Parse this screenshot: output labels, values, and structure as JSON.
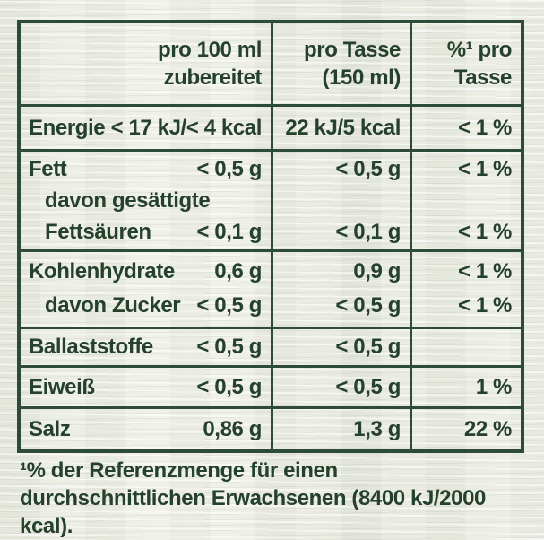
{
  "colors": {
    "ink": "#25402d",
    "border": "#2d4b38",
    "background": "#ecede5"
  },
  "table": {
    "header": {
      "per100": {
        "line1": "pro 100 ml",
        "line2": "zubereitet"
      },
      "perCup": {
        "line1": "pro Tasse",
        "line2": "(150 ml)"
      },
      "pct": {
        "line1": "%¹ pro",
        "line2": "Tasse"
      }
    },
    "rows": {
      "energie": {
        "label": "Energie",
        "per100": "< 17 kJ/< 4 kcal",
        "perCup": "22 kJ/5 kcal",
        "pct": "< 1 %"
      },
      "fett": {
        "label": "Fett",
        "per100": "< 0,5 g",
        "perCup": "< 0,5 g",
        "pct": "< 1 %",
        "sub_line1": "davon gesättigte",
        "sub_line2": "Fettsäuren",
        "sub_per100": "< 0,1 g",
        "sub_perCup": "< 0,1 g",
        "sub_pct": "< 1 %"
      },
      "kohlenhydrate": {
        "label": "Kohlenhydrate",
        "per100": "0,6 g",
        "perCup": "0,9 g",
        "pct": "< 1 %",
        "sub_label": "davon Zucker",
        "sub_per100": "< 0,5 g",
        "sub_perCup": "< 0,5 g",
        "sub_pct": "< 1 %"
      },
      "ballaststoffe": {
        "label": "Ballaststoffe",
        "per100": "< 0,5 g",
        "perCup": "< 0,5 g",
        "pct": ""
      },
      "eiweiss": {
        "label": "Eiweiß",
        "per100": "< 0,5 g",
        "perCup": "< 0,5 g",
        "pct": "1 %"
      },
      "salz": {
        "label": "Salz",
        "per100": "0,86 g",
        "perCup": "1,3 g",
        "pct": "22 %"
      }
    }
  },
  "footnote": "¹% der Referenzmenge für einen durchschnittlichen Erwachsenen (8400 kJ/2000 kcal)."
}
